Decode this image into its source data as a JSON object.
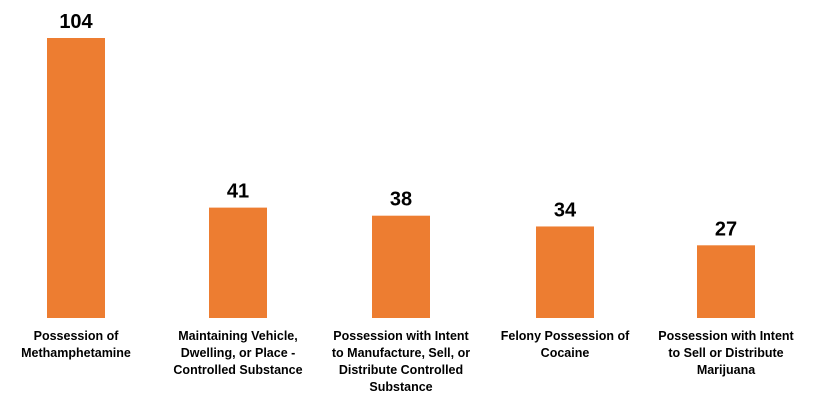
{
  "chart_data": {
    "type": "bar",
    "categories": [
      "Possession of\nMethamphetamine",
      "Maintaining Vehicle,\nDwelling, or Place -\nControlled Substance",
      "Possession with Intent\nto Manufacture, Sell, or\nDistribute Controlled\nSubstance",
      "Felony Possession of\nCocaine",
      "Possession with Intent\nto Sell or Distribute\nMarijuana"
    ],
    "values": [
      104,
      41,
      38,
      34,
      27
    ],
    "title": "",
    "xlabel": "",
    "ylabel": "",
    "ylim": [
      0,
      104
    ],
    "grid": false,
    "legend": "none",
    "bar_color": "#ED7D31"
  }
}
